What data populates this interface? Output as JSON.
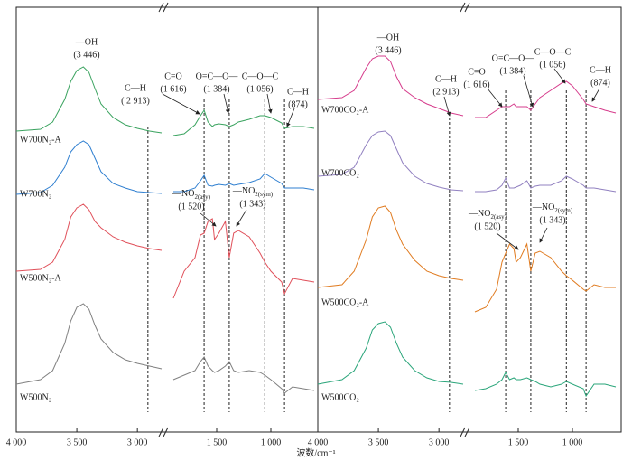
{
  "chart_data": [
    {
      "type": "line",
      "xlabel": "波数/cm⁻¹",
      "xlim": [
        4000,
        600
      ],
      "xbreak": [
        2800,
        2000
      ],
      "ylim": [
        0,
        470
      ],
      "xticks": [
        {
          "value": 4000,
          "label": "4 000"
        },
        {
          "value": 3500,
          "label": "3 500"
        },
        {
          "value": 3000,
          "label": "3 000"
        },
        {
          "value": 1500,
          "label": "1 500"
        },
        {
          "value": 1000,
          "label": "1 000"
        }
      ],
      "reference_lines": [
        2913,
        1616,
        1384,
        1056,
        874
      ],
      "x": [
        4000,
        3800,
        3700,
        3600,
        3550,
        3500,
        3446,
        3400,
        3350,
        3300,
        3200,
        3100,
        3000,
        2900,
        2800,
        1900,
        1800,
        1700,
        1650,
        1616,
        1580,
        1540,
        1520,
        1480,
        1420,
        1384,
        1343,
        1300,
        1200,
        1100,
        1056,
        1000,
        900,
        874,
        800,
        700,
        600
      ],
      "series": [
        {
          "name": "W700N₂-A",
          "color": "#3aa35f",
          "values": [
            333,
            335,
            343,
            368,
            388,
            400,
            404,
            398,
            380,
            363,
            348,
            340,
            336,
            333,
            331,
            328,
            330,
            340,
            350,
            356,
            343,
            338,
            340,
            341,
            340,
            338,
            340,
            343,
            346,
            350,
            350,
            348,
            342,
            336,
            338,
            338,
            336
          ]
        },
        {
          "name": "W700N₂",
          "color": "#2f7fd0",
          "values": [
            263,
            265,
            273,
            293,
            310,
            318,
            322,
            318,
            303,
            288,
            275,
            270,
            266,
            265,
            264,
            266,
            266,
            270,
            278,
            284,
            273,
            272,
            273,
            274,
            273,
            275,
            273,
            274,
            276,
            280,
            286,
            282,
            275,
            270,
            270,
            270,
            268
          ]
        },
        {
          "name": "W500N₂-A",
          "color": "#e0505a",
          "values": [
            178,
            180,
            188,
            213,
            238,
            248,
            252,
            246,
            233,
            226,
            216,
            210,
            206,
            203,
            201,
            148,
            178,
            193,
            218,
            220,
            233,
            236,
            213,
            220,
            233,
            193,
            220,
            223,
            216,
            198,
            188,
            178,
            166,
            153,
            170,
            168,
            166
          ]
        },
        {
          "name": "W500N₂",
          "color": "#808080",
          "values": [
            53,
            58,
            68,
            98,
            123,
            138,
            142,
            136,
            118,
            103,
            88,
            80,
            76,
            73,
            70,
            58,
            63,
            68,
            78,
            83,
            73,
            68,
            66,
            68,
            73,
            78,
            68,
            66,
            68,
            66,
            63,
            58,
            48,
            43,
            50,
            48,
            46
          ]
        }
      ],
      "annotations": [
        {
          "lines": [
            "—OH",
            "(3 446)"
          ]
        },
        {
          "lines": [
            "C—H",
            "( 2 913)"
          ]
        },
        {
          "lines": [
            "C=O",
            "(1 616)"
          ]
        },
        {
          "lines": [
            "O=C—O—",
            "(1 384)"
          ]
        },
        {
          "lines": [
            "C—O—C",
            "(1 056)"
          ]
        },
        {
          "lines": [
            "C—H",
            "(874)"
          ]
        },
        {
          "lines": [
            {
              "text": "—NO",
              "sub": "2(asy)"
            },
            "(1 520)"
          ]
        },
        {
          "lines": [
            {
              "text": "—NO",
              "sub": "2(sym)"
            },
            "(1 343)"
          ]
        }
      ]
    },
    {
      "type": "line",
      "xlim": [
        4000,
        600
      ],
      "xbreak": [
        2800,
        2000
      ],
      "ylim": [
        0,
        470
      ],
      "xticks": [
        {
          "value": 4000,
          "label": "4 000"
        },
        {
          "value": 3500,
          "label": "3 500"
        },
        {
          "value": 3000,
          "label": "3 000"
        },
        {
          "value": 1500,
          "label": "1 500"
        },
        {
          "value": 1000,
          "label": "1 000"
        }
      ],
      "reference_lines": [
        2913,
        1616,
        1384,
        1056,
        874
      ],
      "x": [
        4000,
        3800,
        3700,
        3600,
        3550,
        3500,
        3446,
        3400,
        3350,
        3300,
        3200,
        3100,
        3000,
        2900,
        2800,
        1900,
        1800,
        1700,
        1650,
        1616,
        1580,
        1540,
        1520,
        1480,
        1420,
        1384,
        1343,
        1300,
        1200,
        1100,
        1056,
        1000,
        900,
        874,
        800,
        700,
        600
      ],
      "series": [
        {
          "name": "W700CO₂-A",
          "color": "#d63c8c",
          "values": [
            368,
            370,
            378,
            403,
            413,
            416,
            416,
            410,
            393,
            380,
            370,
            363,
            358,
            353,
            350,
            348,
            348,
            356,
            360,
            360,
            360,
            363,
            360,
            360,
            360,
            356,
            363,
            370,
            378,
            386,
            388,
            383,
            368,
            363,
            360,
            356,
            353
          ]
        },
        {
          "name": "W700CO₂",
          "color": "#9180c0",
          "values": [
            283,
            285,
            293,
            318,
            328,
            332,
            333,
            328,
            313,
            298,
            283,
            275,
            271,
            268,
            267,
            266,
            266,
            268,
            273,
            281,
            270,
            270,
            271,
            273,
            278,
            270,
            272,
            273,
            273,
            278,
            283,
            280,
            273,
            270,
            270,
            268,
            266
          ]
        },
        {
          "name": "W500CO₂-A",
          "color": "#e07b20",
          "values": [
            160,
            163,
            178,
            213,
            238,
            248,
            250,
            243,
            223,
            208,
            190,
            178,
            173,
            170,
            168,
            133,
            138,
            158,
            188,
            198,
            208,
            203,
            188,
            193,
            208,
            178,
            198,
            200,
            193,
            178,
            173,
            168,
            158,
            156,
            163,
            160,
            160
          ]
        },
        {
          "name": "W500CO₂",
          "color": "#2aa57a",
          "values": [
            53,
            58,
            68,
            93,
            113,
            120,
            122,
            116,
            98,
            83,
            68,
            60,
            56,
            55,
            53,
            46,
            48,
            53,
            58,
            66,
            58,
            60,
            58,
            58,
            60,
            58,
            56,
            53,
            50,
            53,
            56,
            53,
            48,
            40,
            53,
            53,
            50
          ]
        }
      ],
      "annotations": [
        {
          "lines": [
            "—OH",
            "(3 446)"
          ]
        },
        {
          "lines": [
            "C—H",
            "(2 913)"
          ]
        },
        {
          "lines": [
            "C=O",
            "(1 616)"
          ]
        },
        {
          "lines": [
            "O=C—O—",
            "(1 384)"
          ]
        },
        {
          "lines": [
            "C—O—C",
            "(1 056)"
          ]
        },
        {
          "lines": [
            "C—H",
            "(874)"
          ]
        },
        {
          "lines": [
            {
              "text": "—NO",
              "sub": "2(asy)"
            },
            "(1 520)"
          ]
        },
        {
          "lines": [
            {
              "text": "—NO",
              "sub": "2(sym)"
            },
            "(1 343)"
          ]
        }
      ]
    }
  ]
}
